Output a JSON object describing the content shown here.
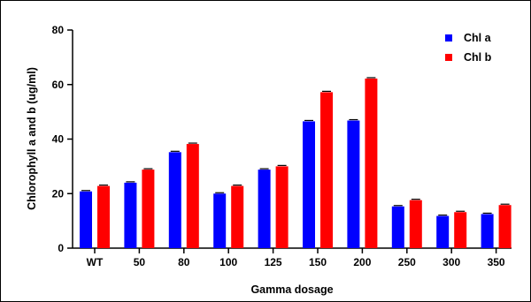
{
  "chart_data": {
    "type": "bar",
    "xlabel": "Gamma dosage",
    "ylabel": "Chlorophyll a and b (ug/ml)",
    "ylim": [
      0,
      80
    ],
    "yticks": [
      0,
      20,
      40,
      60,
      80
    ],
    "grid": false,
    "legend_position": "top-right",
    "categories": [
      "WT",
      "50",
      "80",
      "100",
      "125",
      "150",
      "200",
      "250",
      "300",
      "350"
    ],
    "series": [
      {
        "name": "Chl a",
        "color": "#0000ff",
        "values": [
          20.8,
          24.0,
          35.2,
          20.0,
          28.8,
          46.5,
          46.8,
          15.3,
          11.8,
          12.5
        ]
      },
      {
        "name": "Chl b",
        "color": "#ff0000",
        "values": [
          22.8,
          28.8,
          38.2,
          22.8,
          30.0,
          57.2,
          62.2,
          17.6,
          13.2,
          15.8
        ]
      }
    ]
  }
}
